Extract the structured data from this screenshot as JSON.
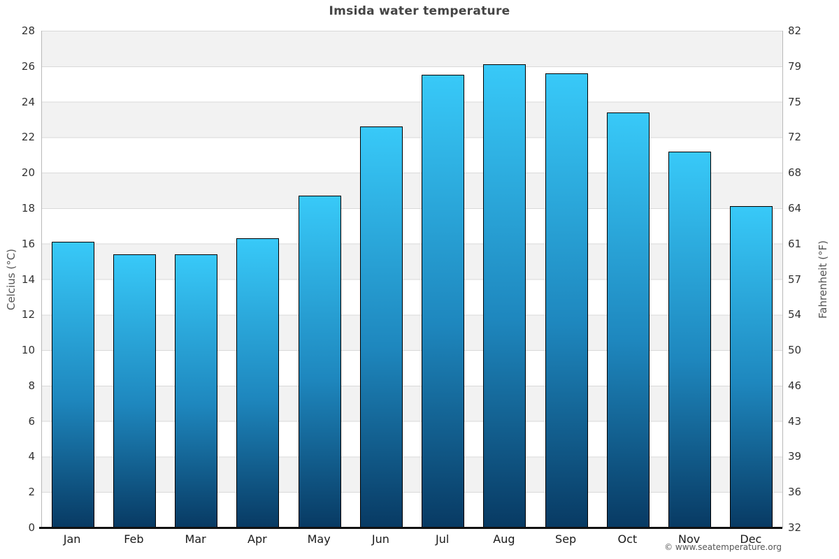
{
  "title": "Imsida water temperature",
  "footer": "© www.seatemperature.org",
  "chart_data": {
    "type": "bar",
    "title": "Imsida water temperature",
    "categories": [
      "Jan",
      "Feb",
      "Mar",
      "Apr",
      "May",
      "Jun",
      "Jul",
      "Aug",
      "Sep",
      "Oct",
      "Nov",
      "Dec"
    ],
    "values": [
      16.1,
      15.4,
      15.4,
      16.3,
      18.7,
      22.6,
      25.5,
      26.1,
      25.6,
      23.4,
      21.2,
      18.1
    ],
    "unit": "°C",
    "ylabel_left": "Celcius (°C)",
    "ylabel_right": "Fahrenheit (°F)",
    "xlabel": "",
    "ylim": [
      0,
      28
    ],
    "celsius_ticks": [
      28,
      26,
      24,
      22,
      20,
      18,
      16,
      14,
      12,
      10,
      8,
      6,
      4,
      2,
      0
    ],
    "fahrenheit_tick_labels": [
      "82",
      "79",
      "75",
      "72",
      "68",
      "64",
      "61",
      "57",
      "54",
      "50",
      "46",
      "43",
      "39",
      "36",
      "32"
    ],
    "grid": "alternating-horizontal-bands",
    "legend": "none",
    "colors": {
      "bar_gradient_top": "#38c9f8",
      "bar_gradient_bottom": "#083a63",
      "bar_border": "#000000",
      "band_gray": "#f2f2f2",
      "band_white": "#ffffff",
      "gridline": "#d9d9d9",
      "axis_line": "#b9b9b9",
      "baseline": "#111111",
      "title_color": "#444444",
      "tick_color": "#333333",
      "axis_label_color": "#555555",
      "footer_color": "#555555"
    }
  }
}
